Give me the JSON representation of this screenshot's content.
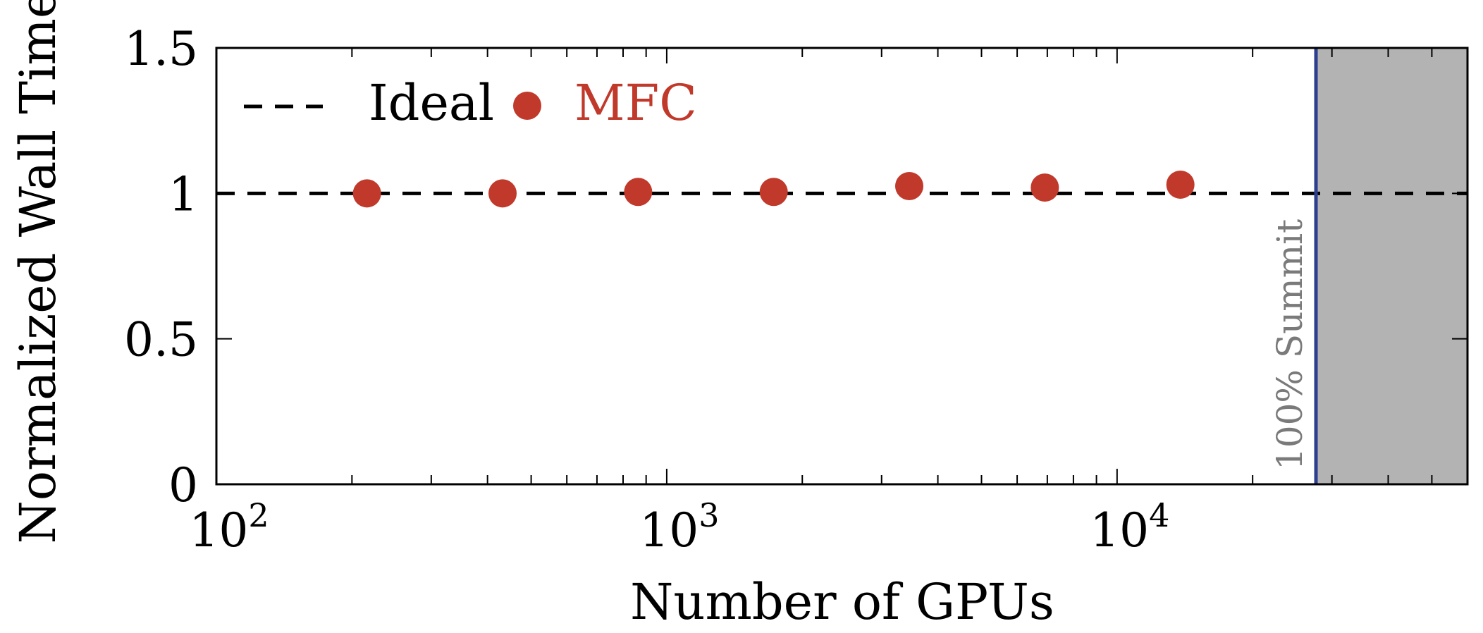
{
  "chart_data": {
    "type": "scatter",
    "xlabel": "Number of GPUs",
    "ylabel": "Normalized Wall Time",
    "xscale": "log",
    "xlim": [
      100,
      60000
    ],
    "ylim": [
      0,
      1.5
    ],
    "grid": false,
    "legend_position": "top-left",
    "x_ticks": [
      {
        "value": 100,
        "base": "10",
        "exp": "2"
      },
      {
        "value": 1000,
        "base": "10",
        "exp": "3"
      },
      {
        "value": 10000,
        "base": "10",
        "exp": "4"
      }
    ],
    "y_ticks": [
      {
        "value": 0,
        "label": "0"
      },
      {
        "value": 0.5,
        "label": "0.5"
      },
      {
        "value": 1,
        "label": "1"
      },
      {
        "value": 1.5,
        "label": "1.5"
      }
    ],
    "series": [
      {
        "name": "Ideal",
        "kind": "dashed-line",
        "color": "#000000",
        "y": 1.0
      },
      {
        "name": "MFC",
        "kind": "points",
        "color": "#c0392b",
        "x": [
          216,
          432,
          864,
          1728,
          3456,
          6912,
          13824
        ],
        "y": [
          1.0,
          1.0,
          1.005,
          1.005,
          1.025,
          1.02,
          1.03
        ]
      }
    ],
    "summit": {
      "label": "100% Summit",
      "x": 27648,
      "line_color": "#2c3e8f",
      "region_color": "#b3b3b3"
    }
  }
}
